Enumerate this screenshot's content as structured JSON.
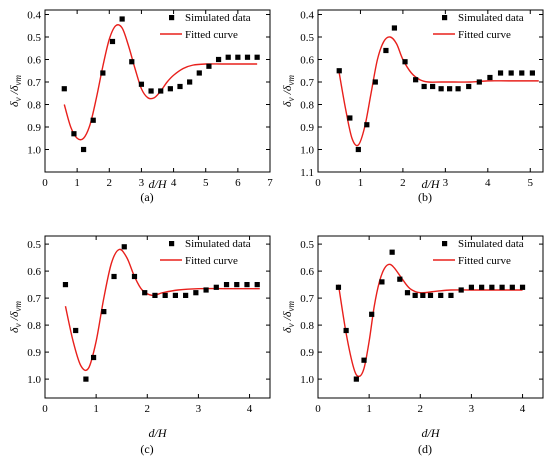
{
  "figure": {
    "ylabel_main": "δ",
    "ylabel_sub1": "v",
    "ylabel_mid": " /δ",
    "ylabel_sub2": "vm",
    "xlabel": "d/H"
  },
  "colors": {
    "fit": "#e8201c",
    "marker": "#000000",
    "axis": "#000000"
  },
  "chart_data": [
    {
      "type": "scatter",
      "caption": "(a)",
      "xlabel": "d/H",
      "ylabel": "δv /δvm",
      "xlim": [
        0,
        7
      ],
      "ylim": [
        1.1,
        0.38
      ],
      "y_inverted": true,
      "xticks": [
        0,
        1,
        2,
        3,
        4,
        5,
        6,
        7
      ],
      "yticks": [
        1.0,
        0.9,
        0.8,
        0.7,
        0.6,
        0.5,
        0.4
      ],
      "legend": [
        "Simulated data",
        "Fitted curve"
      ],
      "legend_position": "top-right",
      "series": [
        {
          "name": "Simulated data",
          "kind": "markers",
          "x": [
            0.6,
            0.9,
            1.2,
            1.5,
            1.8,
            2.1,
            2.4,
            2.7,
            3.0,
            3.3,
            3.6,
            3.9,
            4.2,
            4.5,
            4.8,
            5.1,
            5.4,
            5.7,
            6.0,
            6.3,
            6.6
          ],
          "y": [
            0.73,
            0.93,
            1.0,
            0.87,
            0.66,
            0.52,
            0.42,
            0.61,
            0.71,
            0.74,
            0.74,
            0.73,
            0.72,
            0.7,
            0.66,
            0.63,
            0.6,
            0.59,
            0.59,
            0.59,
            0.59
          ]
        },
        {
          "name": "Fitted curve",
          "kind": "line",
          "x": [
            0.6,
            0.8,
            1.0,
            1.2,
            1.4,
            1.6,
            1.8,
            2.0,
            2.2,
            2.4,
            2.6,
            2.8,
            3.0,
            3.2,
            3.4,
            3.6,
            3.8,
            4.0,
            4.3,
            4.6,
            5.0,
            5.5,
            6.0,
            6.6
          ],
          "y": [
            0.8,
            0.9,
            0.95,
            0.95,
            0.89,
            0.77,
            0.63,
            0.51,
            0.45,
            0.46,
            0.54,
            0.64,
            0.73,
            0.77,
            0.77,
            0.74,
            0.7,
            0.67,
            0.64,
            0.625,
            0.62,
            0.62,
            0.62,
            0.62
          ]
        }
      ]
    },
    {
      "type": "scatter",
      "caption": "(b)",
      "xlabel": "d/H",
      "ylabel": "δv /δvm",
      "xlim": [
        0,
        5.3
      ],
      "ylim": [
        1.1,
        0.38
      ],
      "y_inverted": true,
      "xticks": [
        0,
        1,
        2,
        3,
        4,
        5
      ],
      "yticks": [
        1.1,
        1.0,
        0.9,
        0.8,
        0.7,
        0.6,
        0.5,
        0.4
      ],
      "legend": [
        "Simulated data",
        "Fitted curve"
      ],
      "legend_position": "top-right",
      "series": [
        {
          "name": "Simulated data",
          "kind": "markers",
          "x": [
            0.5,
            0.75,
            0.95,
            1.15,
            1.35,
            1.6,
            1.8,
            2.05,
            2.3,
            2.5,
            2.7,
            2.9,
            3.1,
            3.3,
            3.55,
            3.8,
            4.05,
            4.3,
            4.55,
            4.8,
            5.05
          ],
          "y": [
            0.65,
            0.86,
            1.0,
            0.89,
            0.7,
            0.56,
            0.46,
            0.61,
            0.69,
            0.72,
            0.72,
            0.73,
            0.73,
            0.73,
            0.72,
            0.7,
            0.68,
            0.66,
            0.66,
            0.66,
            0.66
          ]
        },
        {
          "name": "Fitted curve",
          "kind": "line",
          "x": [
            0.5,
            0.65,
            0.8,
            0.95,
            1.1,
            1.25,
            1.4,
            1.55,
            1.7,
            1.85,
            2.0,
            2.2,
            2.4,
            2.6,
            2.9,
            3.2,
            3.6,
            4.0,
            4.5,
            5.2
          ],
          "y": [
            0.66,
            0.82,
            0.95,
            0.98,
            0.9,
            0.75,
            0.6,
            0.52,
            0.5,
            0.53,
            0.6,
            0.66,
            0.69,
            0.7,
            0.7,
            0.7,
            0.7,
            0.695,
            0.695,
            0.695
          ]
        }
      ]
    },
    {
      "type": "scatter",
      "caption": "(c)",
      "xlabel": "d/H",
      "ylabel": "δv /δvm",
      "xlim": [
        0,
        4.4
      ],
      "ylim": [
        1.07,
        0.47
      ],
      "y_inverted": true,
      "xticks": [
        0,
        1,
        2,
        3,
        4
      ],
      "yticks": [
        1.0,
        0.9,
        0.8,
        0.7,
        0.6,
        0.5
      ],
      "legend": [
        "Simulated data",
        "Fitted curve"
      ],
      "legend_position": "top-right",
      "series": [
        {
          "name": "Simulated data",
          "kind": "markers",
          "x": [
            0.4,
            0.6,
            0.8,
            0.95,
            1.15,
            1.35,
            1.55,
            1.75,
            1.95,
            2.15,
            2.35,
            2.55,
            2.75,
            2.95,
            3.15,
            3.35,
            3.55,
            3.75,
            3.95,
            4.15
          ],
          "y": [
            0.65,
            0.82,
            1.0,
            0.92,
            0.75,
            0.62,
            0.51,
            0.62,
            0.68,
            0.69,
            0.69,
            0.69,
            0.69,
            0.68,
            0.67,
            0.66,
            0.65,
            0.65,
            0.65,
            0.65
          ]
        },
        {
          "name": "Fitted curve",
          "kind": "line",
          "x": [
            0.4,
            0.55,
            0.7,
            0.85,
            1.0,
            1.15,
            1.3,
            1.45,
            1.6,
            1.75,
            1.9,
            2.1,
            2.3,
            2.6,
            3.0,
            3.5,
            4.2
          ],
          "y": [
            0.73,
            0.86,
            0.95,
            0.96,
            0.86,
            0.7,
            0.57,
            0.52,
            0.55,
            0.62,
            0.67,
            0.69,
            0.68,
            0.67,
            0.665,
            0.665,
            0.665
          ]
        }
      ]
    },
    {
      "type": "scatter",
      "caption": "(d)",
      "xlabel": "d/H",
      "ylabel": "δv /δvm",
      "xlim": [
        0,
        4.4
      ],
      "ylim": [
        1.07,
        0.47
      ],
      "y_inverted": true,
      "xticks": [
        0,
        1,
        2,
        3,
        4
      ],
      "yticks": [
        1.0,
        0.9,
        0.8,
        0.7,
        0.6,
        0.5
      ],
      "legend": [
        "Simulated data",
        "Fitted curve"
      ],
      "legend_position": "top-right",
      "series": [
        {
          "name": "Simulated data",
          "kind": "markers",
          "x": [
            0.4,
            0.55,
            0.75,
            0.9,
            1.05,
            1.25,
            1.45,
            1.6,
            1.75,
            1.9,
            2.05,
            2.2,
            2.4,
            2.6,
            2.8,
            3.0,
            3.2,
            3.4,
            3.6,
            3.8,
            4.0
          ],
          "y": [
            0.66,
            0.82,
            1.0,
            0.93,
            0.76,
            0.64,
            0.53,
            0.63,
            0.68,
            0.69,
            0.69,
            0.69,
            0.69,
            0.69,
            0.67,
            0.66,
            0.66,
            0.66,
            0.66,
            0.66,
            0.66
          ]
        },
        {
          "name": "Fitted curve",
          "kind": "line",
          "x": [
            0.4,
            0.55,
            0.7,
            0.8,
            0.9,
            1.0,
            1.1,
            1.2,
            1.3,
            1.4,
            1.5,
            1.65,
            1.8,
            2.0,
            2.3,
            2.6,
            3.0,
            3.5,
            4.0
          ],
          "y": [
            0.65,
            0.83,
            0.96,
            0.99,
            0.96,
            0.86,
            0.73,
            0.64,
            0.59,
            0.575,
            0.59,
            0.63,
            0.665,
            0.68,
            0.675,
            0.67,
            0.67,
            0.67,
            0.67
          ]
        }
      ]
    }
  ]
}
